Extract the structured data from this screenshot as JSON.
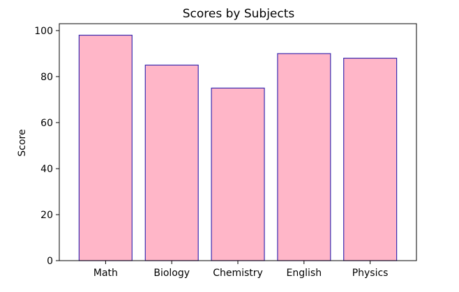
{
  "chart_data": {
    "type": "bar",
    "title": "Scores by Subjects",
    "xlabel": "",
    "ylabel": "Score",
    "categories": [
      "Math",
      "Biology",
      "Chemistry",
      "English",
      "Physics"
    ],
    "values": [
      98,
      85,
      75,
      90,
      88
    ],
    "ylim": [
      0,
      103
    ],
    "yticks": [
      0,
      20,
      40,
      60,
      80,
      100
    ],
    "grid": false,
    "legend": "none",
    "colors": {
      "bar_fill": "#ffb6c8",
      "bar_edge": "#3a2bb0",
      "axis": "#000000"
    }
  }
}
